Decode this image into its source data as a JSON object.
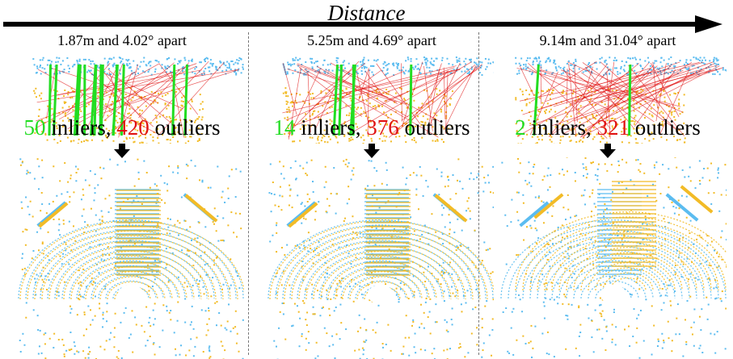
{
  "header": {
    "distance_label": "Distance"
  },
  "colors": {
    "inlier": "#22dd22",
    "outlier": "#e01111",
    "source_cloud": "#5bbcf0",
    "target_cloud": "#f2bb26"
  },
  "panels": [
    {
      "caption": "1.87m and 4.02° apart",
      "inliers_count": "50",
      "inliers_word": " inliers, ",
      "outliers_count": "420",
      "outliers_word": " outliers",
      "arrow_icon": "down-arrow-icon"
    },
    {
      "caption": "5.25m and 4.69° apart",
      "inliers_count": "14",
      "inliers_word": " inliers, ",
      "outliers_count": "376",
      "outliers_word": " outliers",
      "arrow_icon": "down-arrow-icon"
    },
    {
      "caption": "9.14m and 31.04° apart",
      "inliers_count": "2",
      "inliers_word": " inliers, ",
      "outliers_count": "321",
      "outliers_word": " outliers",
      "arrow_icon": "down-arrow-icon"
    }
  ]
}
